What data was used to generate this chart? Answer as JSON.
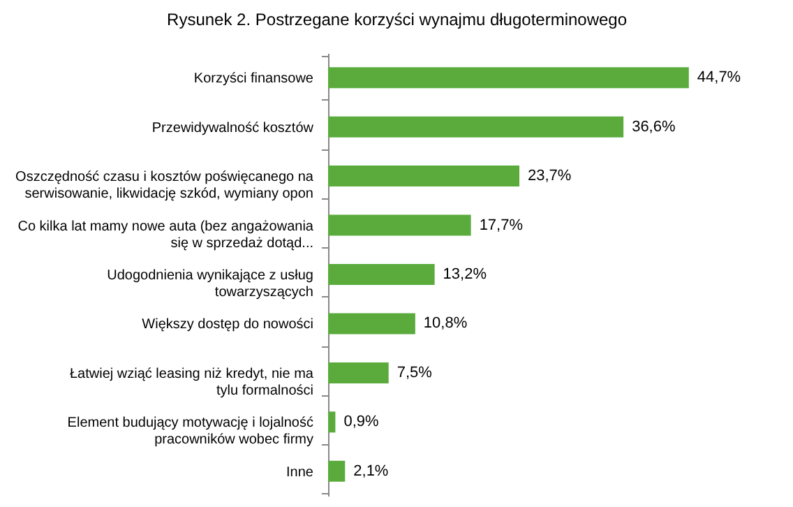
{
  "chart_data": {
    "type": "bar",
    "orientation": "horizontal",
    "title": "Rysunek 2. Postrzegane korzyści wynajmu długoterminowego",
    "categories": [
      "Korzyści finansowe",
      "Przewidywalność kosztów",
      "Oszczędność czasu i kosztów poświęcanego na serwisowanie, likwidację szkód, wymiany opon",
      "Co kilka lat mamy nowe auta (bez angażowania się w sprzedaż dotąd...",
      "Udogodnienia wynikające z usług towarzyszących",
      "Większy dostęp do nowości",
      "Łatwiej wziąć leasing niż kredyt, nie ma tylu formalności",
      "Element budujący motywację i lojalność pracowników wobec firmy",
      "Inne"
    ],
    "values": [
      44.7,
      36.6,
      23.7,
      17.7,
      13.2,
      10.8,
      7.5,
      0.9,
      2.1
    ],
    "value_labels": [
      "44,7%",
      "36,6%",
      "23,7%",
      "17,7%",
      "13,2%",
      "10,8%",
      "7,5%",
      "0,9%",
      "2,1%"
    ],
    "color": "#5aab3c",
    "grid": false,
    "tick_labels": "y"
  }
}
